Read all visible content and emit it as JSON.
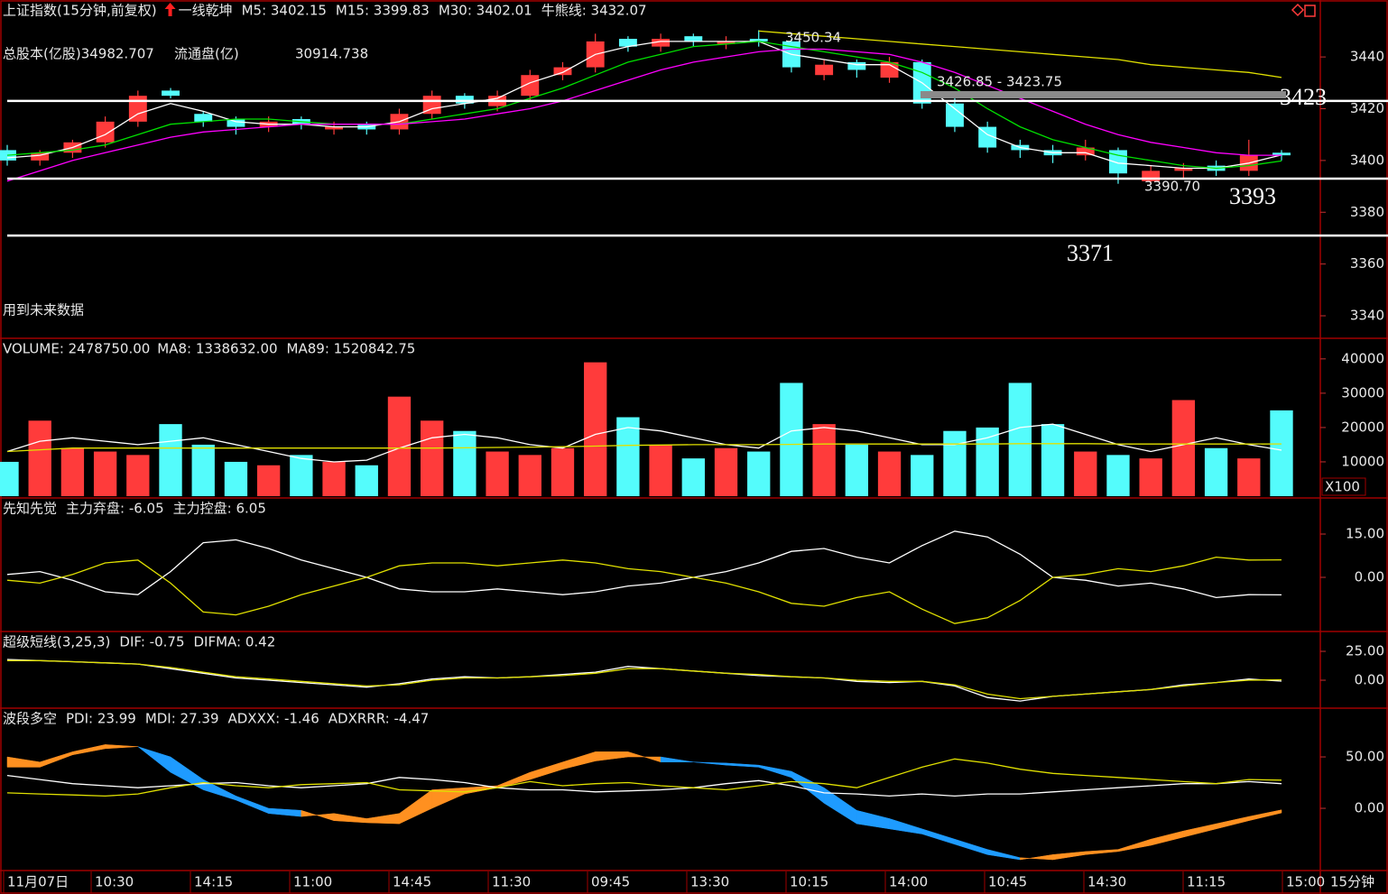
{
  "chart_data": [
    {
      "type": "candlestick",
      "title": "上证指数(15分钟,前复权)",
      "indicator": "一线乾坤",
      "open": [
        3404,
        3400,
        3403,
        3407,
        3415,
        3427,
        3418,
        3416,
        3413,
        3416,
        3412,
        3414,
        3412,
        3418,
        3425,
        3421,
        3425,
        3433,
        3436,
        3447,
        3444,
        3448,
        3445,
        3447,
        3446,
        3433,
        3438,
        3432,
        3438,
        3422,
        3413,
        3406,
        3404,
        3402,
        3404,
        3392,
        3396,
        3398,
        3396,
        3403
      ],
      "high": [
        3406,
        3404,
        3408,
        3417,
        3427,
        3428,
        3419,
        3417,
        3417,
        3417,
        3415,
        3415,
        3420,
        3427,
        3426,
        3427,
        3435,
        3438,
        3449,
        3448,
        3449,
        3449,
        3448,
        3450.34,
        3447,
        3439,
        3439,
        3440,
        3439,
        3424,
        3415,
        3408,
        3406,
        3408,
        3405,
        3398,
        3399,
        3400,
        3408,
        3404
      ],
      "low": [
        3398,
        3398,
        3401,
        3405,
        3413,
        3424,
        3413,
        3410,
        3411,
        3412,
        3410,
        3410,
        3410,
        3416,
        3420,
        3419,
        3423,
        3431,
        3434,
        3442,
        3442,
        3444,
        3443,
        3444,
        3434,
        3431,
        3432,
        3430,
        3420,
        3411,
        3403,
        3401,
        3399,
        3400,
        3391,
        3390.7,
        3393,
        3394,
        3394,
        3400
      ],
      "close": [
        3400,
        3403,
        3407,
        3415,
        3425,
        3425,
        3415,
        3413,
        3415,
        3414,
        3413,
        3412,
        3418,
        3425,
        3422,
        3425,
        3433,
        3436,
        3446,
        3444,
        3447,
        3446,
        3446,
        3446,
        3436,
        3437,
        3435,
        3438,
        3422,
        3413,
        3405,
        3404,
        3402,
        3405,
        3395,
        3396,
        3397,
        3396,
        3402,
        3402
      ],
      "up_color": "#ff3b3b",
      "down_color": "#54fcfc",
      "series": [
        {
          "name": "M5: 3402.15",
          "color": "#ffffff",
          "values": [
            3401,
            3402,
            3405,
            3410,
            3418,
            3422,
            3419,
            3415,
            3414,
            3414,
            3413,
            3413,
            3415,
            3420,
            3422,
            3424,
            3430,
            3434,
            3441,
            3444,
            3446,
            3446,
            3446,
            3446,
            3441,
            3439,
            3437,
            3437,
            3430,
            3420,
            3410,
            3405,
            3403,
            3403,
            3399,
            3398,
            3397,
            3397,
            3399,
            3402.15
          ]
        },
        {
          "name": "M15: 3399.83",
          "color": "#00e000",
          "values": [
            3402,
            3403,
            3404,
            3406,
            3410,
            3414,
            3415,
            3416,
            3416,
            3415,
            3414,
            3414,
            3414,
            3416,
            3418,
            3420,
            3424,
            3428,
            3433,
            3438,
            3441,
            3444,
            3445,
            3446,
            3444,
            3442,
            3440,
            3438,
            3434,
            3428,
            3420,
            3413,
            3408,
            3405,
            3402,
            3400,
            3398,
            3397,
            3398,
            3399.83
          ]
        },
        {
          "name": "M30: 3402.01",
          "color": "#ff00ff",
          "values": [
            3392,
            3396,
            3400,
            3403,
            3406,
            3409,
            3411,
            3412,
            3413,
            3414,
            3414,
            3414,
            3414,
            3415,
            3416,
            3418,
            3420,
            3423,
            3427,
            3431,
            3435,
            3438,
            3440,
            3442,
            3443,
            3443,
            3442,
            3441,
            3438,
            3434,
            3429,
            3424,
            3419,
            3414,
            3410,
            3407,
            3405,
            3403,
            3402,
            3402.01
          ]
        },
        {
          "name": "牛熊线: 3432.07",
          "color": "#e0e000",
          "values": [
            null,
            null,
            null,
            null,
            null,
            null,
            null,
            null,
            null,
            null,
            null,
            null,
            null,
            null,
            null,
            null,
            null,
            null,
            null,
            null,
            null,
            null,
            null,
            3450,
            3449,
            3448,
            3447,
            3446,
            3445,
            3444,
            3443,
            3442,
            3441,
            3440,
            3439,
            3437,
            3436,
            3435,
            3434,
            3432.07
          ]
        }
      ],
      "info": [
        "总股本(亿股)34982.707",
        "流通盘(亿)",
        "30914.738"
      ],
      "note": "用到未来数据",
      "annotations": [
        "3450.34",
        "3426.85 - 3423.75",
        "3390.70"
      ],
      "levels": [
        3423,
        3393,
        3371
      ],
      "ylim": [
        3331.3,
        3462
      ],
      "yticks": [
        3340,
        3360,
        3380,
        3400,
        3420,
        3440
      ]
    },
    {
      "type": "bar",
      "name": "VOLUME: 2478750.00",
      "values": [
        10000,
        22000,
        14000,
        13000,
        12000,
        21000,
        15000,
        10000,
        9000,
        12000,
        10000,
        9000,
        29000,
        22000,
        19000,
        13000,
        12000,
        14000,
        39000,
        23000,
        15000,
        11000,
        14000,
        13000,
        33000,
        21000,
        15000,
        13000,
        12000,
        19000,
        20000,
        33000,
        21000,
        13000,
        12000,
        11000,
        28000,
        14000,
        11000,
        25000
      ],
      "series": [
        {
          "name": "MA8: 1338632.00",
          "color": "#ffffff",
          "values": [
            13000,
            16000,
            17000,
            16000,
            15000,
            16000,
            17000,
            15000,
            13000,
            11000,
            10000,
            10500,
            14000,
            17000,
            18000,
            17000,
            15000,
            14000,
            18000,
            20000,
            19000,
            17000,
            15000,
            14000,
            19000,
            20000,
            19000,
            17000,
            15000,
            15000,
            17000,
            20000,
            21000,
            18000,
            15000,
            13000,
            15000,
            17000,
            15000,
            13400
          ]
        },
        {
          "name": "MA89: 1520842.75",
          "color": "#e0e000",
          "values": [
            13000,
            13500,
            14000,
            14000,
            14000,
            14000,
            14000,
            14000,
            14000,
            14000,
            14000,
            14000,
            14000,
            14000,
            14100,
            14200,
            14300,
            14400,
            14600,
            14800,
            14900,
            15000,
            15000,
            15000,
            15100,
            15200,
            15200,
            15200,
            15200,
            15200,
            15200,
            15300,
            15300,
            15300,
            15200,
            15200,
            15200,
            15200,
            15200,
            15208
          ]
        }
      ],
      "unit": "X100",
      "ylim": [
        0,
        46000
      ],
      "yticks": [
        10000,
        20000,
        30000,
        40000
      ]
    },
    {
      "type": "line",
      "title": "先知先觉",
      "series": [
        {
          "name": "主力弃盘: -6.05",
          "color": "#ffffff",
          "values": [
            1,
            2,
            -1,
            -5,
            -6,
            2,
            12,
            13,
            10,
            6,
            3,
            0,
            -4,
            -5,
            -5,
            -4,
            -5,
            -6,
            -5,
            -3,
            -2,
            0,
            2,
            5,
            9,
            10,
            7,
            5,
            11,
            16,
            14,
            8,
            0,
            -1,
            -3,
            -2,
            -4,
            -7,
            -6,
            -6.05
          ]
        },
        {
          "name": "主力控盘: 6.05",
          "color": "#e0e000",
          "values": [
            -1,
            -2,
            1,
            5,
            6,
            -2,
            -12,
            -13,
            -10,
            -6,
            -3,
            0,
            4,
            5,
            5,
            4,
            5,
            6,
            5,
            3,
            2,
            0,
            -2,
            -5,
            -9,
            -10,
            -7,
            -5,
            -11,
            -16,
            -14,
            -8,
            0,
            1,
            3,
            2,
            4,
            7,
            6,
            6.05
          ]
        }
      ],
      "ylim": [
        -18.75,
        27.5
      ],
      "yticks": [
        {
          "value": 0,
          "label": "0.00"
        },
        {
          "value": 15,
          "label": "15.00"
        }
      ]
    },
    {
      "type": "line",
      "title": "超级短线(3,25,3)",
      "series": [
        {
          "name": "DIF: -0.75",
          "color": "#ffffff",
          "values": [
            18,
            17,
            16,
            15,
            14,
            10,
            6,
            2,
            0,
            -2,
            -4,
            -6,
            -3,
            1,
            3,
            2,
            3,
            5,
            7,
            12,
            10,
            8,
            6,
            4,
            3,
            2,
            -1,
            -2,
            -1,
            -5,
            -15,
            -18,
            -14,
            -12,
            -10,
            -8,
            -4,
            -2,
            1,
            -0.75
          ]
        },
        {
          "name": "DIFMA: 0.42",
          "color": "#e0e000",
          "values": [
            17,
            17,
            16,
            15,
            14,
            11,
            7,
            3,
            1,
            -1,
            -3,
            -5,
            -4,
            0,
            2,
            2,
            3,
            4,
            6,
            10,
            10,
            8,
            6,
            5,
            3,
            2,
            0,
            -1,
            -1,
            -4,
            -12,
            -16,
            -14,
            -12,
            -10,
            -8,
            -5,
            -2,
            0,
            0.42
          ]
        }
      ],
      "ylim": [
        -24.2,
        42.2
      ],
      "yticks": [
        {
          "value": 0,
          "label": "0.00"
        },
        {
          "value": 25,
          "label": "25.00"
        }
      ]
    },
    {
      "type": "line",
      "title": "波段多空",
      "series": [
        {
          "name": "PDI: 23.99",
          "color": "#ffffff",
          "values": [
            32,
            28,
            24,
            22,
            20,
            22,
            24,
            25,
            22,
            20,
            22,
            24,
            30,
            28,
            25,
            20,
            18,
            18,
            16,
            17,
            18,
            20,
            24,
            27,
            22,
            15,
            14,
            12,
            14,
            12,
            14,
            14,
            16,
            18,
            20,
            22,
            24,
            24,
            26,
            23.99
          ]
        },
        {
          "name": "MDI: 27.39",
          "color": "#e0e000",
          "values": [
            15,
            14,
            13,
            12,
            14,
            20,
            25,
            22,
            20,
            23,
            24,
            25,
            18,
            17,
            16,
            20,
            26,
            22,
            24,
            25,
            22,
            20,
            18,
            22,
            26,
            24,
            20,
            30,
            40,
            48,
            44,
            38,
            34,
            32,
            30,
            28,
            26,
            24,
            28,
            27.39
          ]
        },
        {
          "name": "ADXXX: -1.46",
          "color": "#ff00ff",
          "values": [
            50,
            45,
            55,
            62,
            60,
            35,
            18,
            8,
            -5,
            -8,
            -5,
            -10,
            -5,
            18,
            20,
            22,
            35,
            45,
            55,
            55,
            45,
            45,
            42,
            40,
            30,
            5,
            -15,
            -20,
            -25,
            -35,
            -45,
            -50,
            -45,
            -42,
            -40,
            -30,
            -22,
            -15,
            -8,
            -1.46
          ]
        },
        {
          "name": "ADXRRR: -4.47",
          "color": "#00e000",
          "values": [
            40,
            40,
            52,
            58,
            60,
            50,
            28,
            12,
            0,
            -2,
            -12,
            -14,
            -15,
            0,
            14,
            20,
            28,
            38,
            46,
            50,
            50,
            45,
            44,
            42,
            36,
            20,
            -2,
            -10,
            -20,
            -30,
            -40,
            -48,
            -50,
            -45,
            -42,
            -36,
            -28,
            -20,
            -12,
            -4.47
          ]
        }
      ],
      "band_colors": [
        "#ff9020",
        "#1e9bff"
      ],
      "x_labels": [
        "11月07日",
        "10:30",
        "14:15",
        "11:00",
        "14:45",
        "11:30",
        "09:45",
        "13:30",
        "10:15",
        "14:00",
        "10:45",
        "14:30",
        "11:15",
        "15:00"
      ],
      "period": "15分钟",
      "ylim": [
        -60.5,
        97.4
      ],
      "yticks": [
        {
          "value": 0,
          "label": "0.00"
        },
        {
          "value": 50,
          "label": "50.00"
        }
      ]
    }
  ]
}
